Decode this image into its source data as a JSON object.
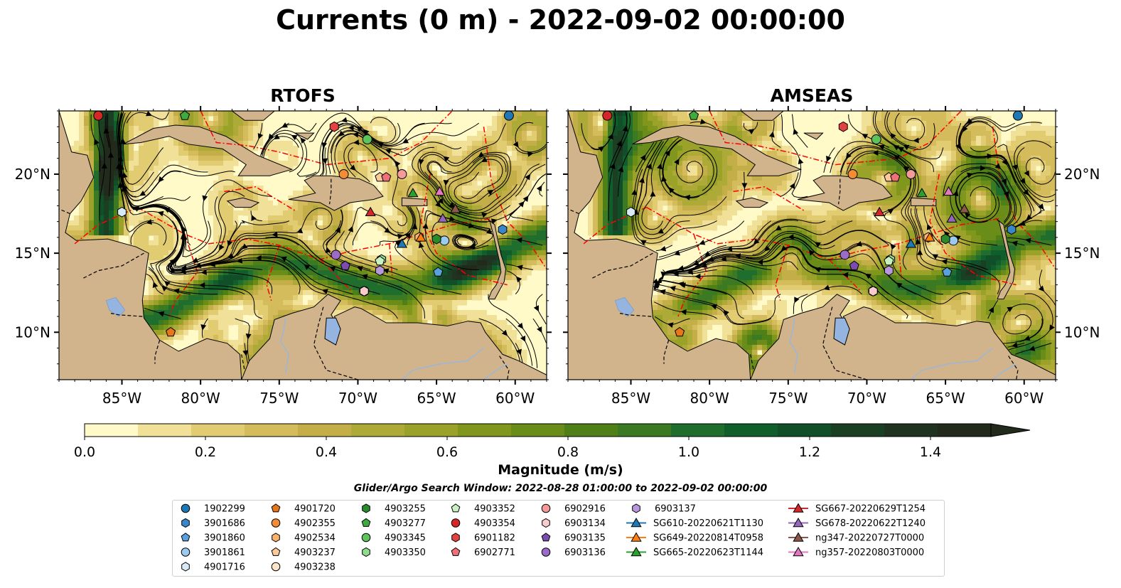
{
  "title": "Currents (0 m) - 2022-09-02 00:00:00",
  "panels": [
    {
      "name": "RTOFS",
      "colormap_variant": "rtofs"
    },
    {
      "name": "AMSEAS",
      "colormap_variant": "amseas"
    }
  ],
  "map": {
    "lon_range": [
      -89,
      -58
    ],
    "lat_range": [
      7,
      24
    ],
    "x_ticks": [
      {
        "value": -85,
        "label": "85°W"
      },
      {
        "value": -80,
        "label": "80°W"
      },
      {
        "value": -75,
        "label": "75°W"
      },
      {
        "value": -70,
        "label": "70°W"
      },
      {
        "value": -65,
        "label": "65°W"
      },
      {
        "value": -60,
        "label": "60°W"
      }
    ],
    "y_ticks": [
      {
        "value": 20,
        "label": "20°N"
      },
      {
        "value": 15,
        "label": "15°N"
      },
      {
        "value": 10,
        "label": "10°N"
      }
    ],
    "colors": {
      "land": "#d2b48c",
      "ocean_low": "#fef7c0",
      "ocean_high": "#1b2e14",
      "eez_lines": "#ff0000",
      "streamlines": "#000000",
      "water_body": "#95b5e0"
    }
  },
  "colorbar": {
    "label": "Magnitude (m/s)",
    "min": 0.0,
    "max": 1.5,
    "extend": "max",
    "tick_labels": [
      "0.0",
      "0.2",
      "0.4",
      "0.6",
      "0.8",
      "1.0",
      "1.2",
      "1.4"
    ],
    "tick_values": [
      0.0,
      0.2,
      0.4,
      0.6,
      0.8,
      1.0,
      1.2,
      1.4
    ],
    "colors": [
      "#fffac8",
      "#f0e098",
      "#e2cc72",
      "#d4bb5c",
      "#c4ae48",
      "#aeaa38",
      "#9aa22a",
      "#80961c",
      "#6a8c18",
      "#4f8018",
      "#3b7a22",
      "#1f6e2e",
      "#0f5e2c",
      "#104f28",
      "#1a3f22",
      "#203220",
      "#222a1c"
    ]
  },
  "search_window": "Glider/Argo Search Window: 2022-08-28 01:00:00 to 2022-09-02 00:00:00",
  "legend": {
    "columns": [
      [
        {
          "label": "1902299",
          "marker": "circle",
          "color": "#1f77b4"
        },
        {
          "label": "3901686",
          "marker": "hexagon",
          "color": "#3a86c8"
        },
        {
          "label": "3901860",
          "marker": "pentagon",
          "color": "#5aa0dc"
        },
        {
          "label": "3901861",
          "marker": "circle",
          "color": "#9cc9ee"
        },
        {
          "label": "4901716",
          "marker": "hexagon",
          "color": "#d6eaf8"
        }
      ],
      [
        {
          "label": "4901720",
          "marker": "pentagon",
          "color": "#e8761a"
        },
        {
          "label": "4902355",
          "marker": "circle",
          "color": "#f48c34"
        },
        {
          "label": "4902534",
          "marker": "hexagon",
          "color": "#f9b36c"
        },
        {
          "label": "4903237",
          "marker": "pentagon",
          "color": "#fcc89a"
        },
        {
          "label": "4903238",
          "marker": "circle",
          "color": "#fde4c8"
        }
      ],
      [
        {
          "label": "4903255",
          "marker": "hexagon",
          "color": "#2b8a2b"
        },
        {
          "label": "4903277",
          "marker": "pentagon",
          "color": "#3faa3f"
        },
        {
          "label": "4903345",
          "marker": "circle",
          "color": "#5dc45d"
        },
        {
          "label": "4903350",
          "marker": "hexagon",
          "color": "#8fdc8f"
        }
      ],
      [
        {
          "label": "4903352",
          "marker": "pentagon",
          "color": "#c8f0c0"
        },
        {
          "label": "4903354",
          "marker": "circle",
          "color": "#d62728"
        },
        {
          "label": "6901182",
          "marker": "hexagon",
          "color": "#e34242"
        },
        {
          "label": "6902771",
          "marker": "pentagon",
          "color": "#f0707a"
        }
      ],
      [
        {
          "label": "6902916",
          "marker": "circle",
          "color": "#f49a9a"
        },
        {
          "label": "6903134",
          "marker": "hexagon",
          "color": "#fbcaca"
        },
        {
          "label": "6903135",
          "marker": "pentagon",
          "color": "#7b4bb0"
        },
        {
          "label": "6903136",
          "marker": "circle",
          "color": "#9a6cc8"
        }
      ],
      [
        {
          "label": "6903137",
          "marker": "hexagon",
          "color": "#b798dc"
        },
        {
          "label": "SG610-20220621T1130",
          "marker": "triangle-line",
          "color": "#1f77b4"
        },
        {
          "label": "SG649-20220814T0958",
          "marker": "triangle-line",
          "color": "#ff7f0e"
        },
        {
          "label": "SG665-20220623T1144",
          "marker": "triangle-line",
          "color": "#2ca02c"
        }
      ],
      [
        {
          "label": "SG667-20220629T1254",
          "marker": "triangle-line",
          "color": "#d62728"
        },
        {
          "label": "SG678-20220622T1240",
          "marker": "triangle-line",
          "color": "#9467bd"
        },
        {
          "label": "ng347-20220727T0000",
          "marker": "triangle-line",
          "color": "#8c564b"
        },
        {
          "label": "ng357-20220803T0000",
          "marker": "triangle-line",
          "color": "#e377c2"
        }
      ]
    ]
  },
  "platforms": [
    {
      "id": "1902299",
      "lon": -60.4,
      "lat": 23.7
    },
    {
      "id": "3901686",
      "lon": -60.8,
      "lat": 16.5
    },
    {
      "id": "3901860",
      "lon": -64.9,
      "lat": 13.8
    },
    {
      "id": "3901861",
      "lon": -64.5,
      "lat": 15.8
    },
    {
      "id": "4901716",
      "lon": -85.0,
      "lat": 17.6
    },
    {
      "id": "4901720",
      "lon": -81.9,
      "lat": 10.0
    },
    {
      "id": "4902355",
      "lon": -70.9,
      "lat": 20.0
    },
    {
      "id": "4902534",
      "lon": -66.1,
      "lat": 16.0
    },
    {
      "id": "4903237",
      "lon": -68.6,
      "lat": 19.8
    },
    {
      "id": "4903238",
      "lon": -69.6,
      "lat": 12.6
    },
    {
      "id": "4903255",
      "lon": -65.0,
      "lat": 15.9
    },
    {
      "id": "4903277",
      "lon": -81.0,
      "lat": 23.7
    },
    {
      "id": "4903345",
      "lon": -69.4,
      "lat": 22.2
    },
    {
      "id": "4903350",
      "lon": -68.5,
      "lat": 14.6
    },
    {
      "id": "4903352",
      "lon": -68.6,
      "lat": 14.5
    },
    {
      "id": "4903354",
      "lon": -86.5,
      "lat": 23.7
    },
    {
      "id": "6901182",
      "lon": -71.5,
      "lat": 23.0
    },
    {
      "id": "6902771",
      "lon": -68.2,
      "lat": 19.8
    },
    {
      "id": "6902916",
      "lon": -67.2,
      "lat": 20.0
    },
    {
      "id": "6903134",
      "lon": -69.6,
      "lat": 12.6
    },
    {
      "id": "6903135",
      "lon": -70.8,
      "lat": 14.2
    },
    {
      "id": "6903136",
      "lon": -71.4,
      "lat": 14.9
    },
    {
      "id": "6903137",
      "lon": -68.6,
      "lat": 13.9
    },
    {
      "id": "SG610-20220621T1130",
      "lon": -67.2,
      "lat": 15.6
    },
    {
      "id": "SG649-20220814T0958",
      "lon": -66.0,
      "lat": 16.0
    },
    {
      "id": "SG665-20220623T1144",
      "lon": -66.5,
      "lat": 18.8
    },
    {
      "id": "SG667-20220629T1254",
      "lon": -69.2,
      "lat": 17.6
    },
    {
      "id": "SG678-20220622T1240",
      "lon": -64.6,
      "lat": 17.2
    },
    {
      "id": "ng347-20220727T0000",
      "lon": -63.8,
      "lat": 17.8
    },
    {
      "id": "ng357-20220803T0000",
      "lon": -64.8,
      "lat": 18.9
    }
  ]
}
